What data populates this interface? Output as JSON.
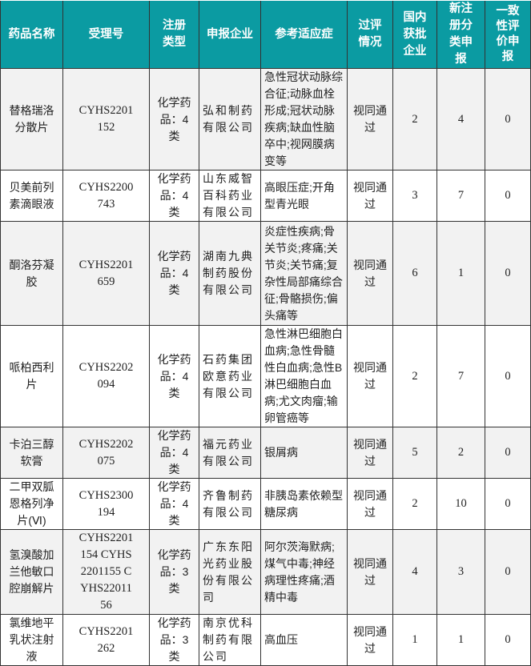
{
  "header_color": "#0b9ba2",
  "columns": [
    "药品名称",
    "受理号",
    "注册类型",
    "申报企业",
    "参考适应症",
    "过评情况",
    "国内获批企业",
    "新注册分类申报",
    "一致性评价申报"
  ],
  "rows": [
    {
      "name": "替格瑞洛分散片",
      "no": "CYHS2201152",
      "type": "化学药品：4类",
      "company": "弘和制药有限公司",
      "indication": "急性冠状动脉综合征;动脉血栓形成;冠状动脉疾病;缺血性脑卒中;视网膜病变等",
      "status": "视同通过",
      "domestic": "2",
      "new_reg": "4",
      "consistency": "0"
    },
    {
      "name": "贝美前列素滴眼液",
      "no": "CYHS2200743",
      "type": "化学药品：4类",
      "company": "山东威智百科药业有限公司",
      "indication": "高眼压症;开角型青光眼",
      "status": "视同通过",
      "domestic": "3",
      "new_reg": "7",
      "consistency": "0"
    },
    {
      "name": "酮洛芬凝胶",
      "no": "CYHS2201659",
      "type": "化学药品：4类",
      "company": "湖南九典制药股份有限公司",
      "indication": "炎症性疾病;骨关节炎;疼痛;关节炎;关节痛;复杂性局部痛综合征;骨骼损伤;偏头痛等",
      "status": "视同通过",
      "domestic": "6",
      "new_reg": "1",
      "consistency": "0"
    },
    {
      "name": "哌柏西利片",
      "no": "CYHS2202094",
      "type": "化学药品：4类",
      "company": "石药集团欧意药业有限公司",
      "indication": "急性淋巴细胞白血病;急性骨髓性白血病;急性B淋巴细胞白血病;尤文肉瘤;输卵管癌等",
      "status": "视同通过",
      "domestic": "2",
      "new_reg": "7",
      "consistency": "0"
    },
    {
      "name": "卡泊三醇软膏",
      "no": "CYHS2202075",
      "type": "化学药品：4类",
      "company": "福元药业有限公司",
      "indication": "银屑病",
      "status": "视同通过",
      "domestic": "5",
      "new_reg": "2",
      "consistency": "0"
    },
    {
      "name": "二甲双胍恩格列净片(Ⅵ)",
      "no": "CYHS2300194",
      "type": "化学药品：4类",
      "company": "齐鲁制药有限公司",
      "indication": "非胰岛素依赖型糖尿病",
      "status": "视同通过",
      "domestic": "2",
      "new_reg": "10",
      "consistency": "0"
    },
    {
      "name": "氢溴酸加兰他敏口腔崩解片",
      "no": "CYHS2201154 CYHS2201155 CYHS2201156",
      "type": "化学药品：3类",
      "company": "广东东阳光药业股份有限公司",
      "indication": "阿尔茨海默病;煤气中毒;神经病理性疼痛;酒精中毒",
      "status": "视同通过",
      "domestic": "4",
      "new_reg": "3",
      "consistency": "0"
    },
    {
      "name": "氯维地平乳状注射液",
      "no": "CYHS2201262",
      "type": "化学药品：3类",
      "company": "南京优科制药有限公司",
      "indication": "高血压",
      "status": "视同通过",
      "domestic": "1",
      "new_reg": "1",
      "consistency": "0"
    }
  ]
}
